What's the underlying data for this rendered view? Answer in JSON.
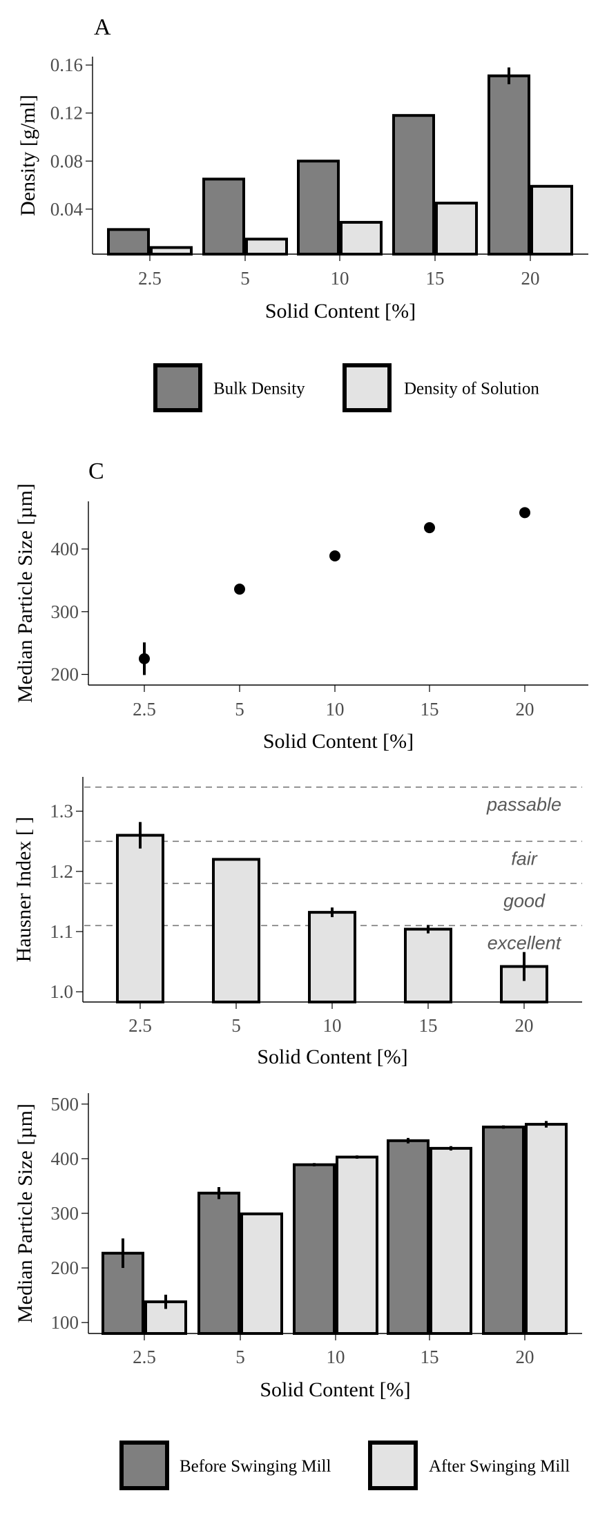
{
  "colors": {
    "dark_bar": "#7f7f7f",
    "light_bar": "#e3e3e3",
    "outline": "#000000",
    "tick_text": "#4d4d4d",
    "dashed_line": "#7a7a7a",
    "zone_text": "#595959"
  },
  "chart_data": [
    {
      "id": "A",
      "type": "bar",
      "panel_label": "A",
      "title": "",
      "xlabel": "Solid Content [%]",
      "ylabel": "Density [g/ml]",
      "categories": [
        "2.5",
        "5",
        "10",
        "15",
        "20"
      ],
      "yticks": [
        "0.04",
        "0.08",
        "0.12",
        "0.16"
      ],
      "ytick_values": [
        0.04,
        0.08,
        0.12,
        0.16
      ],
      "ylim": [
        0.0025,
        0.167
      ],
      "grid": false,
      "legend": "bottom",
      "series": [
        {
          "name": "Bulk Density",
          "values": [
            0.023,
            0.065,
            0.08,
            0.118,
            0.151
          ],
          "errors": [
            0,
            0,
            0,
            0,
            0.007
          ],
          "fill": "dark"
        },
        {
          "name": "Density of Solution",
          "values": [
            0.008,
            0.015,
            0.029,
            0.045,
            0.059
          ],
          "errors": [
            0,
            0,
            0,
            0,
            0
          ],
          "fill": "light"
        }
      ]
    },
    {
      "id": "C",
      "type": "scatter",
      "panel_label": "C",
      "title": "",
      "xlabel": "Solid Content [%]",
      "ylabel": "Median Particle Size [µm]",
      "categories": [
        "2.5",
        "5",
        "10",
        "15",
        "20"
      ],
      "yticks": [
        "200",
        "300",
        "400"
      ],
      "ytick_values": [
        200,
        300,
        400
      ],
      "ylim": [
        183,
        476
      ],
      "grid": false,
      "series": [
        {
          "name": "Median Particle Size",
          "values": [
            225,
            336,
            389,
            434,
            458
          ],
          "errors": [
            26,
            8,
            4,
            4,
            3
          ]
        }
      ]
    },
    {
      "id": "Hausner",
      "type": "bar",
      "panel_label": "",
      "title": "",
      "xlabel": "Solid Content [%]",
      "ylabel": "Hausner Index [ ]",
      "categories": [
        "2.5",
        "5",
        "10",
        "15",
        "20"
      ],
      "yticks": [
        "1.0",
        "1.1",
        "1.2",
        "1.3"
      ],
      "ytick_values": [
        1.0,
        1.1,
        1.2,
        1.3
      ],
      "ylim": [
        0.983,
        1.357
      ],
      "grid": false,
      "series": [
        {
          "name": "Hausner Index",
          "values": [
            1.26,
            1.22,
            1.132,
            1.104,
            1.042
          ],
          "errors": [
            0.022,
            0,
            0.008,
            0.007,
            0.024
          ],
          "fill": "light"
        }
      ],
      "reference_lines": [
        {
          "value": 1.34,
          "label": "passable"
        },
        {
          "value": 1.25,
          "label": "fair"
        },
        {
          "value": 1.18,
          "label": "good"
        },
        {
          "value": 1.11,
          "label": "excellent"
        }
      ]
    },
    {
      "id": "Mill",
      "type": "bar",
      "panel_label": "",
      "title": "",
      "xlabel": "Solid Content [%]",
      "ylabel": "Median Particle Size [µm]",
      "categories": [
        "2.5",
        "5",
        "10",
        "15",
        "20"
      ],
      "yticks": [
        "100",
        "200",
        "300",
        "400",
        "500"
      ],
      "ytick_values": [
        100,
        200,
        300,
        400,
        500
      ],
      "ylim": [
        80,
        520
      ],
      "grid": false,
      "legend": "bottom",
      "series": [
        {
          "name": "Before Swinging Mill",
          "values": [
            227,
            337,
            389,
            433,
            458
          ],
          "errors": [
            27,
            11,
            3,
            5,
            3
          ],
          "fill": "dark"
        },
        {
          "name": "After Swinging Mill",
          "values": [
            138,
            299,
            403,
            419,
            463
          ],
          "errors": [
            13,
            2,
            3,
            4,
            6
          ],
          "fill": "light"
        }
      ]
    }
  ]
}
